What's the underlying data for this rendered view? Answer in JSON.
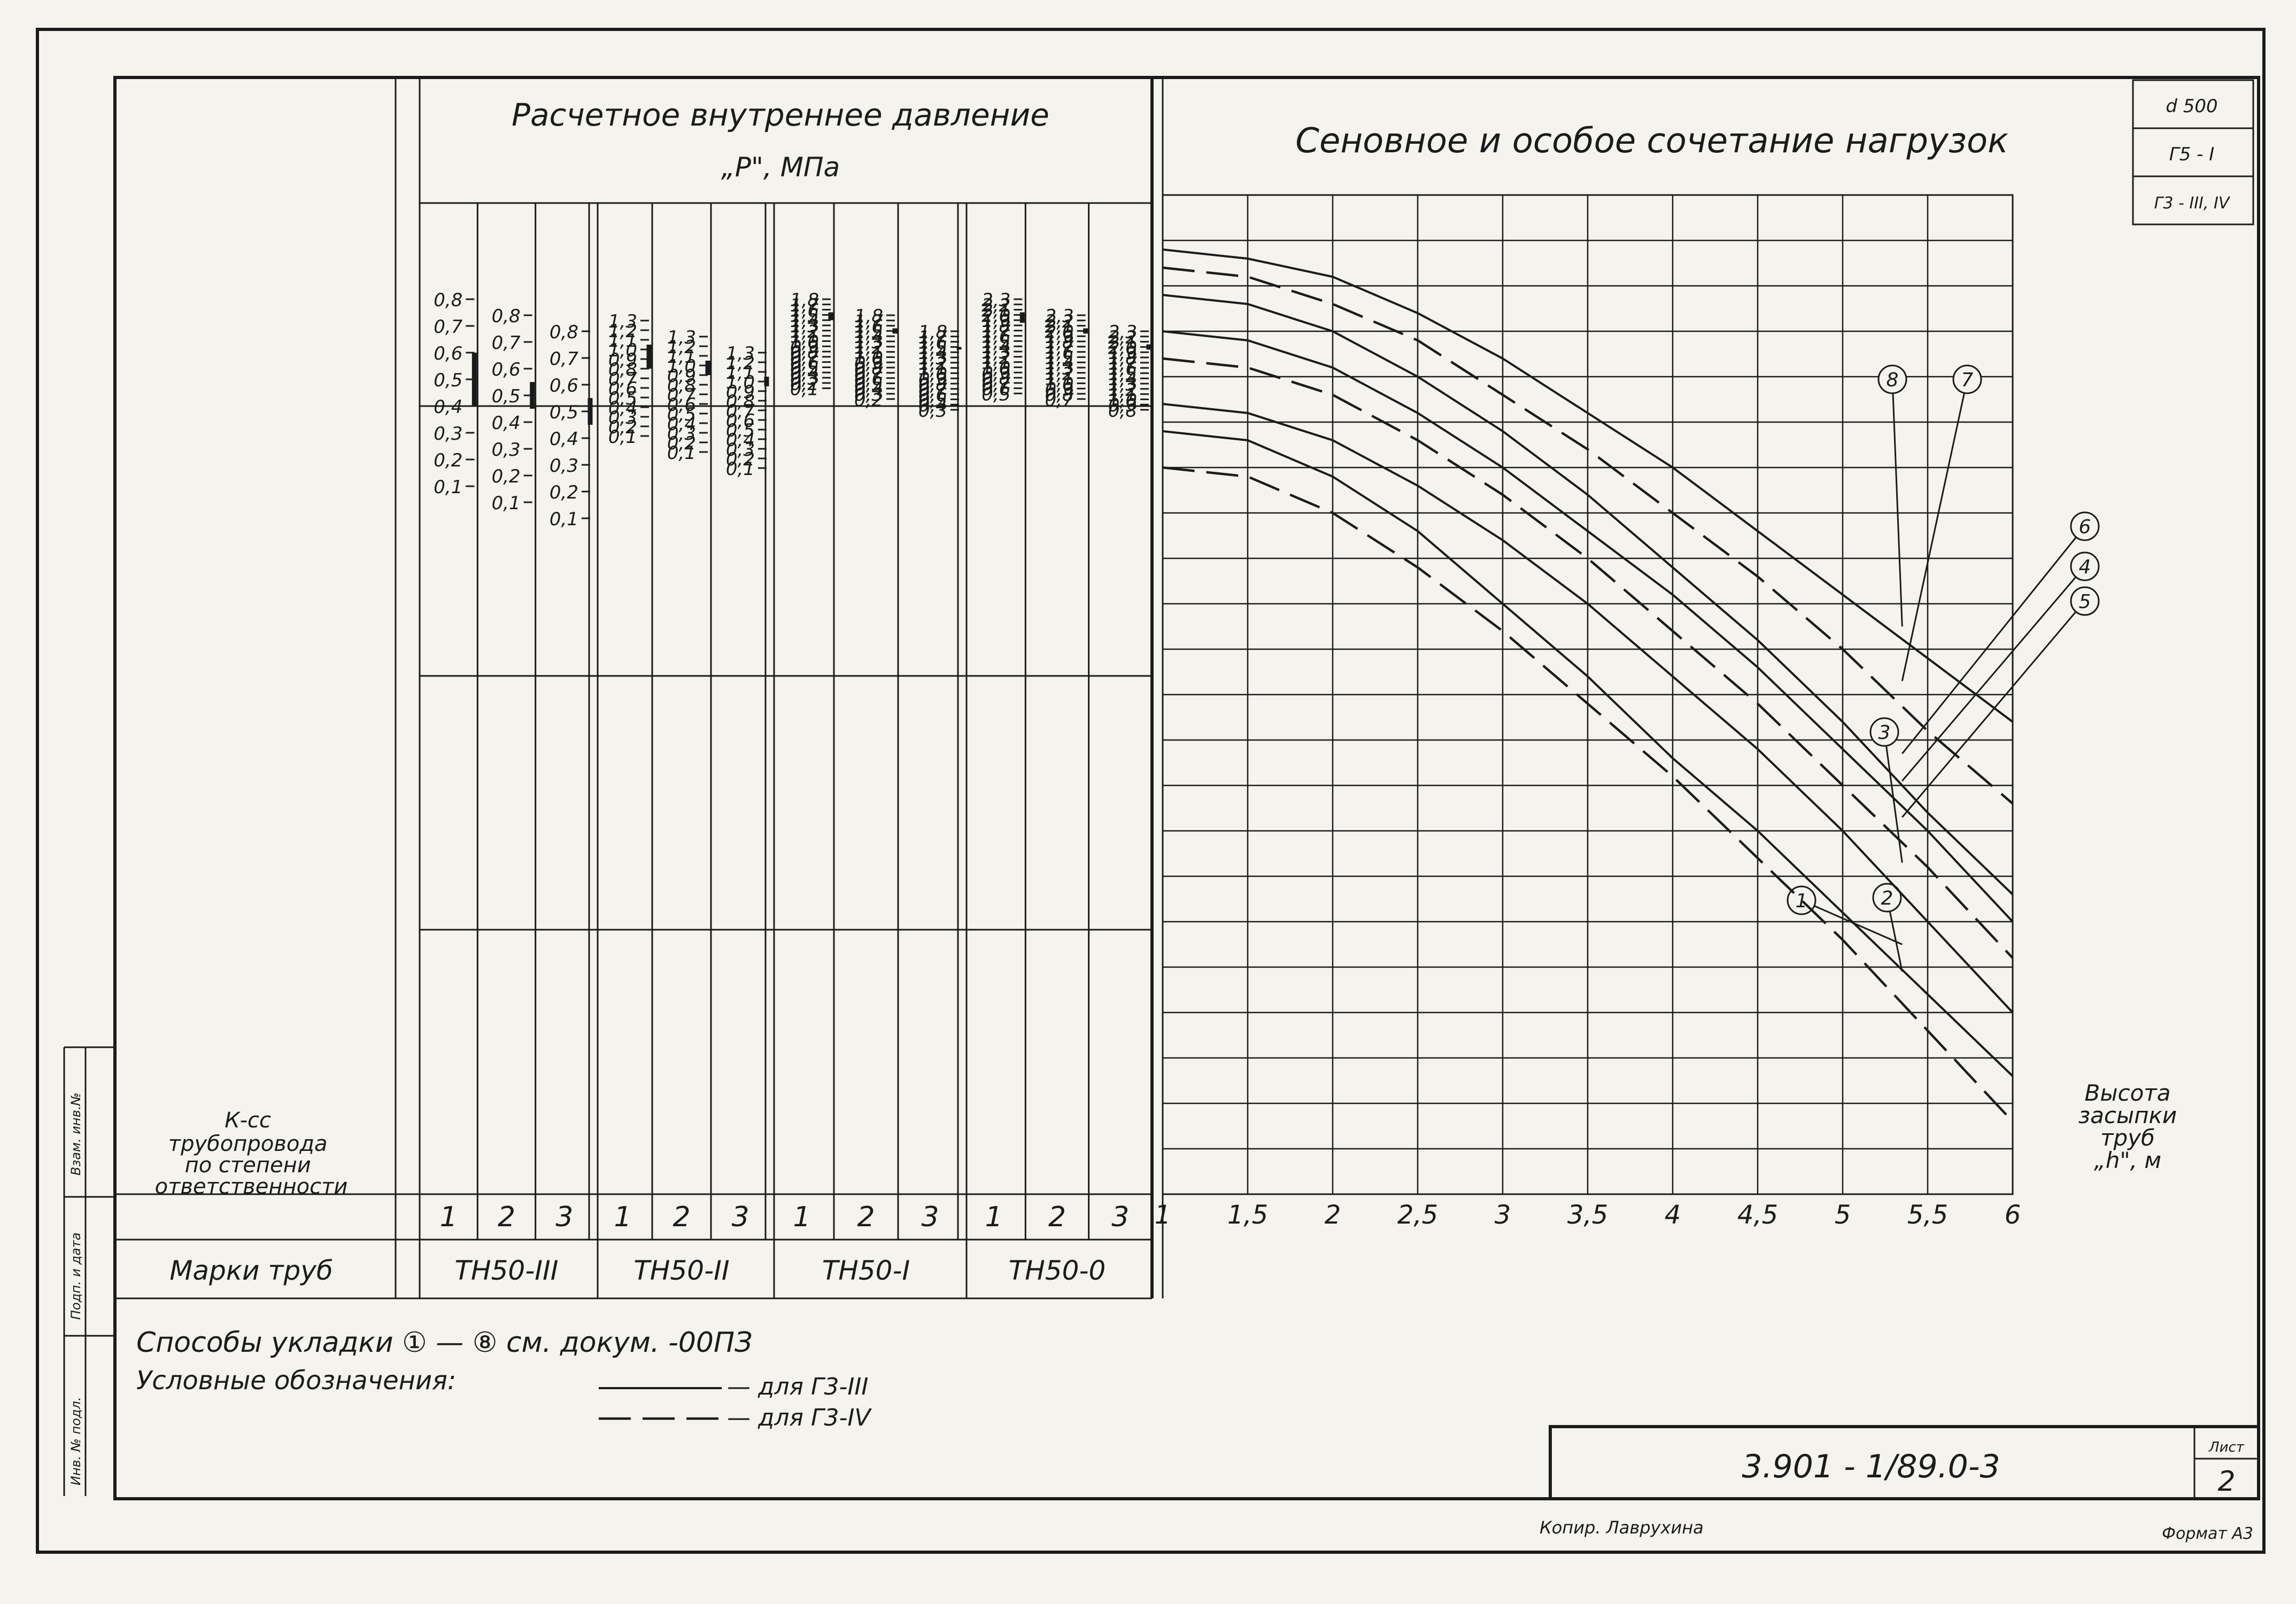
{
  "header": {
    "pressure_title": "Расчетное внутреннее давление",
    "pressure_unit": "„P\", МПа",
    "chart_title": "Сеновное и особое сочетание нагрузок"
  },
  "corner_stamp": [
    "d 500",
    "Г5 - I",
    "Г3 - III, IV"
  ],
  "side_labels": {
    "class_label": "Класс трубопровода по степени ответственности",
    "marks_label": "Марки труб",
    "binding_cells": [
      "Взам. инв.№",
      "Подп. и дата",
      "Инв. № подл."
    ]
  },
  "pipe_groups": [
    {
      "mark": "ТН50-III",
      "columns": [
        {
          "class": "1",
          "ticks": [
            "0,8",
            "0,7",
            "0,6",
            "0,5",
            "0,4",
            "0,3",
            "0,2",
            "0,1"
          ],
          "range": [
            "0,6",
            "0,4"
          ]
        },
        {
          "class": "2",
          "ticks": [
            "0,8",
            "0,7",
            "0,6",
            "0,5",
            "0,4",
            "0,3",
            "0,2",
            "0,1"
          ],
          "range": [
            "0,55",
            "0,45"
          ]
        },
        {
          "class": "3",
          "ticks": [
            "0,8",
            "0,7",
            "0,6",
            "0,5",
            "0,4",
            "0,3",
            "0,2",
            "0,1"
          ],
          "range": [
            "0,55",
            "0,45"
          ]
        }
      ]
    },
    {
      "mark": "ТН50-II",
      "columns": [
        {
          "class": "1",
          "ticks": [
            "1,3",
            "1,2",
            "1,1",
            "1,0",
            "0,9",
            "0,8",
            "0,7",
            "0,6",
            "0,5",
            "0,4",
            "0,3",
            "0,2",
            "0,1"
          ],
          "range": [
            "1,05",
            "0,8"
          ]
        },
        {
          "class": "2",
          "ticks": [
            "1,3",
            "1,2",
            "1,1",
            "1,0",
            "0,9",
            "0,8",
            "0,7",
            "0,6",
            "0,5",
            "0,4",
            "0,3",
            "0,2",
            "0,1"
          ],
          "range": [
            "1,05",
            "0,9"
          ]
        },
        {
          "class": "3",
          "ticks": [
            "1,3",
            "1,2",
            "1,1",
            "1,0",
            "0,9",
            "0,8",
            "0,7",
            "0,6",
            "0,5",
            "0,4",
            "0,3",
            "0,2",
            "0,1"
          ],
          "range": [
            "1,05",
            "0,95"
          ]
        }
      ]
    },
    {
      "mark": "ТН50-I",
      "columns": [
        {
          "class": "1",
          "ticks": [
            "1,8",
            "1,7",
            "1,6",
            "1,5",
            "1,4",
            "1,3",
            "1,2",
            "1,1",
            "1,0",
            "0,9",
            "0,8",
            "0,7",
            "0,6",
            "0,5",
            "0,4",
            "0,3",
            "0,2",
            "0,1"
          ],
          "range": [
            "1,55",
            "1,4"
          ]
        },
        {
          "class": "2",
          "ticks": [
            "1,8",
            "1,7",
            "1,6",
            "1,5",
            "1,4",
            "1,3",
            "1,2",
            "1,1",
            "1,0",
            "0,9",
            "0,8",
            "0,7",
            "0,6",
            "0,5",
            "0,4",
            "0,3",
            "0,2"
          ],
          "range": [
            "1,55",
            "1,45"
          ]
        },
        {
          "class": "3",
          "ticks": [
            "1,8",
            "1,7",
            "1,6",
            "1,5",
            "1,4",
            "1,3",
            "1,2",
            "1,1",
            "1,0",
            "0,9",
            "0,8",
            "0,7",
            "0,6",
            "0,5",
            "0,4",
            "0,3"
          ],
          "range": [
            "1,5",
            "1,45"
          ]
        }
      ]
    },
    {
      "mark": "ТН50-0",
      "columns": [
        {
          "class": "1",
          "ticks": [
            "2,3",
            "2,2",
            "2,1",
            "2,0",
            "1,9",
            "1,8",
            "1,7",
            "1,6",
            "1,5",
            "1,4",
            "1,3",
            "1,2",
            "1,1",
            "1,0",
            "0,9",
            "0,8",
            "0,7",
            "0,6",
            "0,5"
          ],
          "range": [
            "2,05",
            "1,85"
          ]
        },
        {
          "class": "2",
          "ticks": [
            "2,3",
            "2,2",
            "2,1",
            "2,0",
            "1,9",
            "1,8",
            "1,7",
            "1,6",
            "1,5",
            "1,4",
            "1,3",
            "1,2",
            "1,1",
            "1,0",
            "0,9",
            "0,8",
            "0,7"
          ],
          "range": [
            "2,05",
            "1,95"
          ]
        },
        {
          "class": "3",
          "ticks": [
            "2,3",
            "2,2",
            "2,1",
            "2,0",
            "1,9",
            "1,8",
            "1,7",
            "1,6",
            "1,5",
            "1,4",
            "1,3",
            "1,2",
            "1,1",
            "1,0",
            "0,9",
            "0,8"
          ],
          "range": [
            "2,05",
            "1,95"
          ]
        }
      ]
    }
  ],
  "chart_data": {
    "type": "line",
    "title": "Сеновное и особое сочетание нагрузок",
    "xlabel": "Высота засыпки труб „h\", м",
    "x_ticks": [
      "1",
      "1,5",
      "2",
      "2,5",
      "3",
      "3,5",
      "4",
      "4,5",
      "5",
      "5,5",
      "6"
    ],
    "xlim": [
      1,
      6
    ],
    "grid": true,
    "series": [
      {
        "name": "1",
        "style": "solid",
        "x": [
          1,
          1.5,
          2,
          2.5,
          3,
          3.5,
          4,
          4.5,
          5,
          5.5,
          6
        ],
        "y": [
          0.84,
          0.83,
          0.79,
          0.73,
          0.65,
          0.57,
          0.48,
          0.4,
          0.31,
          0.22,
          0.13
        ]
      },
      {
        "name": "2",
        "style": "dashed",
        "x": [
          1,
          1.5,
          2,
          2.5,
          3,
          3.5,
          4,
          4.5,
          5,
          5.5,
          6
        ],
        "y": [
          0.8,
          0.79,
          0.75,
          0.69,
          0.62,
          0.54,
          0.46,
          0.37,
          0.28,
          0.18,
          0.08
        ]
      },
      {
        "name": "3",
        "style": "solid",
        "x": [
          1,
          1.5,
          2,
          2.5,
          3,
          3.5,
          4,
          4.5,
          5,
          5.5,
          6
        ],
        "y": [
          0.87,
          0.86,
          0.83,
          0.78,
          0.72,
          0.65,
          0.57,
          0.49,
          0.4,
          0.3,
          0.2
        ]
      },
      {
        "name": "4",
        "style": "solid",
        "x": [
          1,
          1.5,
          2,
          2.5,
          3,
          3.5,
          4,
          4.5,
          5,
          5.5,
          6
        ],
        "y": [
          0.95,
          0.94,
          0.91,
          0.86,
          0.8,
          0.73,
          0.66,
          0.58,
          0.49,
          0.4,
          0.3
        ]
      },
      {
        "name": "5",
        "style": "dashed",
        "x": [
          1,
          1.5,
          2,
          2.5,
          3,
          3.5,
          4,
          4.5,
          5,
          5.5,
          6
        ],
        "y": [
          0.92,
          0.91,
          0.88,
          0.83,
          0.77,
          0.7,
          0.62,
          0.54,
          0.45,
          0.36,
          0.26
        ]
      },
      {
        "name": "6",
        "style": "solid",
        "x": [
          1,
          1.5,
          2,
          2.5,
          3,
          3.5,
          4,
          4.5,
          5,
          5.5,
          6
        ],
        "y": [
          0.99,
          0.98,
          0.95,
          0.9,
          0.84,
          0.77,
          0.69,
          0.61,
          0.52,
          0.42,
          0.33
        ]
      },
      {
        "name": "7",
        "style": "dashed",
        "x": [
          1,
          1.5,
          2,
          2.5,
          3,
          3.5,
          4,
          4.5,
          5,
          5.5,
          6
        ],
        "y": [
          1.02,
          1.01,
          0.98,
          0.94,
          0.88,
          0.82,
          0.75,
          0.68,
          0.6,
          0.51,
          0.43
        ]
      },
      {
        "name": "8",
        "style": "solid",
        "x": [
          1,
          1.5,
          2,
          2.5,
          3,
          3.5,
          4,
          4.5,
          5,
          5.5,
          6
        ],
        "y": [
          1.04,
          1.03,
          1.01,
          0.97,
          0.92,
          0.86,
          0.8,
          0.73,
          0.66,
          0.59,
          0.52
        ]
      }
    ]
  },
  "footer": {
    "methods_note": "Способы укладки ① — ⑧  см. докум. -00ПЗ",
    "legend_title": "Условные обозначения:",
    "legend_solid": "— для Г3-III",
    "legend_dashed": "— для Г3-IV",
    "doc_number": "3.901 - 1/89.0-3",
    "sheet_label": "Лист",
    "sheet_number": "2",
    "copied_by": "Копир. Лаврухина",
    "format": "Формат А3"
  }
}
